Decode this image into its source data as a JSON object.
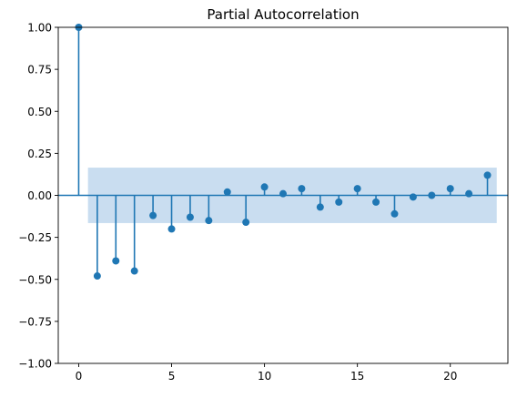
{
  "chart_data": {
    "type": "stem",
    "title": "Partial Autocorrelation",
    "xlabel": "",
    "ylabel": "",
    "xlim": [
      -1.1,
      23.1
    ],
    "ylim": [
      -1.0,
      1.0
    ],
    "x_ticks": [
      0,
      5,
      10,
      15,
      20
    ],
    "x_tick_labels": [
      "0",
      "5",
      "10",
      "15",
      "20"
    ],
    "y_ticks": [
      -1.0,
      -0.75,
      -0.5,
      -0.25,
      0.0,
      0.25,
      0.5,
      0.75,
      1.0
    ],
    "y_tick_labels": [
      "−1.00",
      "−0.75",
      "−0.50",
      "−0.25",
      "0.00",
      "0.25",
      "0.50",
      "0.75",
      "1.00"
    ],
    "grid": false,
    "legend": "none",
    "series": [
      {
        "lags": [
          0,
          1,
          2,
          3,
          4,
          5,
          6,
          7,
          8,
          9,
          10,
          11,
          12,
          13,
          14,
          15,
          16,
          17,
          18,
          19,
          20,
          21,
          22
        ],
        "values": [
          1.0,
          -0.48,
          -0.39,
          -0.45,
          -0.12,
          -0.2,
          -0.13,
          -0.15,
          0.02,
          -0.16,
          0.05,
          0.01,
          0.04,
          -0.07,
          -0.04,
          0.04,
          -0.04,
          -0.11,
          -0.01,
          0.0,
          0.04,
          0.01,
          0.12
        ]
      }
    ],
    "confidence_band": {
      "x_start": 0.5,
      "x_end": 22.5,
      "upper": 0.165,
      "lower": -0.165
    },
    "colors": {
      "stem": "#1f77b4",
      "band": "#c6dbef",
      "axes": "#000000"
    }
  }
}
